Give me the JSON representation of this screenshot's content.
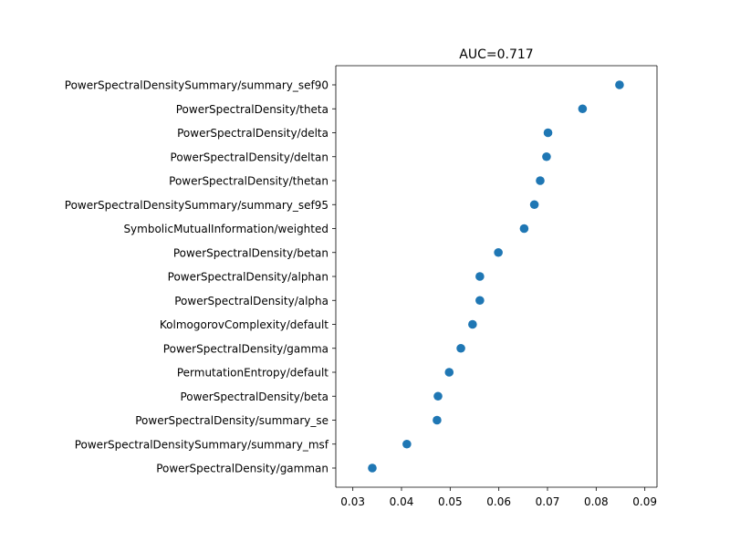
{
  "chart_data": {
    "type": "scatter",
    "title": "AUC=0.717",
    "xlabel": "",
    "ylabel": "",
    "xlim": [
      0.0265,
      0.0925
    ],
    "x_ticks": [
      "0.03",
      "0.04",
      "0.05",
      "0.06",
      "0.07",
      "0.08",
      "0.09"
    ],
    "x_tick_values": [
      0.03,
      0.04,
      0.05,
      0.06,
      0.07,
      0.08,
      0.09
    ],
    "grid": false,
    "legend": "none",
    "marker_color": "#1f77b4",
    "points": [
      {
        "label": "PowerSpectralDensitySummary/summary_sef90",
        "x": 0.0848
      },
      {
        "label": "PowerSpectralDensity/theta",
        "x": 0.0772
      },
      {
        "label": "PowerSpectralDensity/delta",
        "x": 0.0701
      },
      {
        "label": "PowerSpectralDensity/deltan",
        "x": 0.0698
      },
      {
        "label": "PowerSpectralDensity/thetan",
        "x": 0.0685
      },
      {
        "label": "PowerSpectralDensitySummary/summary_sef95",
        "x": 0.0673
      },
      {
        "label": "SymbolicMutualInformation/weighted",
        "x": 0.0652
      },
      {
        "label": "PowerSpectralDensity/betan",
        "x": 0.0599
      },
      {
        "label": "PowerSpectralDensity/alphan",
        "x": 0.0561
      },
      {
        "label": "PowerSpectralDensity/alpha",
        "x": 0.0561
      },
      {
        "label": "KolmogorovComplexity/default",
        "x": 0.0546
      },
      {
        "label": "PowerSpectralDensity/gamma",
        "x": 0.0522
      },
      {
        "label": "PermutationEntropy/default",
        "x": 0.0498
      },
      {
        "label": "PowerSpectralDensity/beta",
        "x": 0.0475
      },
      {
        "label": "PowerSpectralDensity/summary_se",
        "x": 0.0473
      },
      {
        "label": "PowerSpectralDensitySummary/summary_msf",
        "x": 0.0411
      },
      {
        "label": "PowerSpectralDensity/gamman",
        "x": 0.034
      }
    ]
  }
}
